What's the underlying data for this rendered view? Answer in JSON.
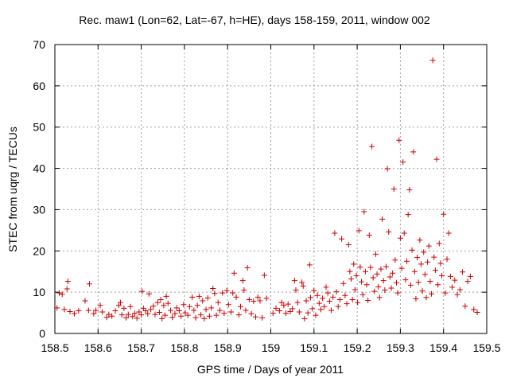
{
  "chart_data": {
    "type": "scatter",
    "title": "Rec. maw1 (Lon=62, Lat=-67, h=HE), days 158-159, 2011, window 002",
    "xlabel": "GPS time / Days of year 2011",
    "ylabel": "STEC from uqrg / TECUs",
    "xlim": [
      158.5,
      159.5
    ],
    "ylim": [
      0,
      70
    ],
    "xticks": [
      "158.5",
      "158.6",
      "158.7",
      "158.8",
      "158.9",
      "159",
      "159.1",
      "159.2",
      "159.3",
      "159.4",
      "159.5"
    ],
    "yticks": [
      "0",
      "10",
      "20",
      "30",
      "40",
      "50",
      "60",
      "70"
    ],
    "grid": true,
    "marker": "+",
    "color": "#cc0000",
    "points": [
      [
        158.505,
        6.2
      ],
      [
        158.51,
        9.8
      ],
      [
        158.517,
        9.5
      ],
      [
        158.522,
        5.8
      ],
      [
        158.528,
        10.8
      ],
      [
        158.53,
        12.6
      ],
      [
        158.535,
        5.3
      ],
      [
        158.545,
        4.8
      ],
      [
        158.555,
        5.5
      ],
      [
        158.57,
        7.9
      ],
      [
        158.578,
        5.6
      ],
      [
        158.58,
        12.0
      ],
      [
        158.59,
        4.8
      ],
      [
        158.595,
        5.6
      ],
      [
        158.605,
        6.8
      ],
      [
        158.61,
        5.2
      ],
      [
        158.62,
        3.9
      ],
      [
        158.625,
        4.6
      ],
      [
        158.632,
        4.2
      ],
      [
        158.64,
        5.5
      ],
      [
        158.648,
        6.8
      ],
      [
        158.652,
        7.5
      ],
      [
        158.655,
        4.5
      ],
      [
        158.66,
        6.1
      ],
      [
        158.665,
        3.8
      ],
      [
        158.67,
        4.6
      ],
      [
        158.675,
        6.5
      ],
      [
        158.68,
        4.1
      ],
      [
        158.685,
        4.9
      ],
      [
        158.69,
        3.7
      ],
      [
        158.695,
        5.2
      ],
      [
        158.7,
        4.5
      ],
      [
        158.702,
        10.2
      ],
      [
        158.705,
        6.1
      ],
      [
        158.71,
        5.5
      ],
      [
        158.715,
        4.8
      ],
      [
        158.718,
        9.6
      ],
      [
        158.722,
        5.8
      ],
      [
        158.728,
        6.6
      ],
      [
        158.732,
        4.6
      ],
      [
        158.738,
        7.5
      ],
      [
        158.742,
        5.1
      ],
      [
        158.745,
        8.2
      ],
      [
        158.748,
        3.6
      ],
      [
        158.752,
        6.8
      ],
      [
        158.755,
        4.4
      ],
      [
        158.758,
        9.0
      ],
      [
        158.762,
        7.3
      ],
      [
        158.768,
        5.6
      ],
      [
        158.772,
        3.9
      ],
      [
        158.778,
        4.8
      ],
      [
        158.782,
        6.2
      ],
      [
        158.788,
        5.5
      ],
      [
        158.792,
        4.2
      ],
      [
        158.798,
        7.0
      ],
      [
        158.802,
        5.0
      ],
      [
        158.808,
        4.4
      ],
      [
        158.812,
        6.5
      ],
      [
        158.818,
        8.8
      ],
      [
        158.822,
        5.6
      ],
      [
        158.826,
        3.8
      ],
      [
        158.83,
        6.8
      ],
      [
        158.834,
        9.0
      ],
      [
        158.838,
        4.5
      ],
      [
        158.842,
        7.9
      ],
      [
        158.846,
        3.6
      ],
      [
        158.85,
        5.8
      ],
      [
        158.854,
        8.6
      ],
      [
        158.858,
        4.2
      ],
      [
        158.862,
        6.2
      ],
      [
        158.866,
        10.9
      ],
      [
        158.87,
        9.7
      ],
      [
        158.874,
        4.4
      ],
      [
        158.878,
        7.5
      ],
      [
        158.882,
        5.6
      ],
      [
        158.888,
        9.8
      ],
      [
        158.892,
        4.9
      ],
      [
        158.898,
        10.4
      ],
      [
        158.902,
        7.0
      ],
      [
        158.908,
        5.2
      ],
      [
        158.912,
        9.8
      ],
      [
        158.915,
        14.6
      ],
      [
        158.92,
        8.8
      ],
      [
        158.926,
        4.5
      ],
      [
        158.93,
        6.5
      ],
      [
        158.935,
        12.8
      ],
      [
        158.938,
        10.5
      ],
      [
        158.942,
        5.6
      ],
      [
        158.946,
        15.9
      ],
      [
        158.95,
        8.2
      ],
      [
        158.955,
        4.8
      ],
      [
        158.96,
        7.8
      ],
      [
        158.965,
        4.0
      ],
      [
        158.97,
        8.8
      ],
      [
        158.975,
        7.9
      ],
      [
        158.98,
        3.8
      ],
      [
        158.985,
        14.1
      ],
      [
        158.99,
        8.5
      ],
      [
        159.005,
        4.9
      ],
      [
        159.012,
        6.1
      ],
      [
        159.02,
        5.5
      ],
      [
        159.025,
        7.5
      ],
      [
        159.03,
        6.8
      ],
      [
        159.035,
        4.9
      ],
      [
        159.04,
        7.1
      ],
      [
        159.045,
        5.3
      ],
      [
        159.05,
        6.0
      ],
      [
        159.055,
        12.8
      ],
      [
        159.058,
        10.5
      ],
      [
        159.062,
        7.5
      ],
      [
        159.066,
        5.2
      ],
      [
        159.072,
        12.4
      ],
      [
        159.075,
        11.5
      ],
      [
        159.078,
        3.6
      ],
      [
        159.082,
        7.9
      ],
      [
        159.086,
        5.0
      ],
      [
        159.09,
        16.6
      ],
      [
        159.092,
        8.7
      ],
      [
        159.096,
        6.0
      ],
      [
        159.1,
        10.4
      ],
      [
        159.104,
        4.4
      ],
      [
        159.108,
        9.2
      ],
      [
        159.112,
        7.3
      ],
      [
        159.116,
        5.8
      ],
      [
        159.12,
        8.5
      ],
      [
        159.124,
        6.5
      ],
      [
        159.128,
        11.2
      ],
      [
        159.132,
        9.8
      ],
      [
        159.136,
        7.8
      ],
      [
        159.14,
        5.6
      ],
      [
        159.144,
        8.8
      ],
      [
        159.148,
        24.3
      ],
      [
        159.152,
        10.1
      ],
      [
        159.156,
        6.5
      ],
      [
        159.16,
        8.2
      ],
      [
        159.164,
        22.9
      ],
      [
        159.168,
        12.1
      ],
      [
        159.172,
        9.2
      ],
      [
        159.176,
        7.2
      ],
      [
        159.18,
        21.5
      ],
      [
        159.183,
        15.0
      ],
      [
        159.186,
        13.2
      ],
      [
        159.189,
        8.2
      ],
      [
        159.192,
        16.8
      ],
      [
        159.195,
        10.6
      ],
      [
        159.198,
        14.0
      ],
      [
        159.201,
        7.5
      ],
      [
        159.204,
        24.9
      ],
      [
        159.207,
        16.1
      ],
      [
        159.21,
        12.5
      ],
      [
        159.213,
        9.4
      ],
      [
        159.216,
        29.5
      ],
      [
        159.219,
        15.0
      ],
      [
        159.222,
        11.8
      ],
      [
        159.225,
        8.0
      ],
      [
        159.228,
        23.8
      ],
      [
        159.231,
        16.0
      ],
      [
        159.234,
        45.3
      ],
      [
        159.237,
        13.5
      ],
      [
        159.24,
        10.2
      ],
      [
        159.243,
        19.2
      ],
      [
        159.246,
        14.4
      ],
      [
        159.249,
        11.3
      ],
      [
        159.252,
        8.7
      ],
      [
        159.255,
        15.6
      ],
      [
        159.258,
        27.7
      ],
      [
        159.261,
        12.8
      ],
      [
        159.264,
        10.5
      ],
      [
        159.267,
        16.2
      ],
      [
        159.27,
        39.9
      ],
      [
        159.273,
        24.6
      ],
      [
        159.276,
        13.7
      ],
      [
        159.279,
        11.0
      ],
      [
        159.282,
        14.6
      ],
      [
        159.285,
        35.0
      ],
      [
        159.288,
        17.8
      ],
      [
        159.291,
        12.3
      ],
      [
        159.294,
        9.8
      ],
      [
        159.297,
        46.8
      ],
      [
        159.3,
        23.1
      ],
      [
        159.303,
        15.8
      ],
      [
        159.306,
        41.5
      ],
      [
        159.309,
        24.3
      ],
      [
        159.312,
        13.0
      ],
      [
        159.315,
        17.5
      ],
      [
        159.318,
        28.8
      ],
      [
        159.321,
        34.8
      ],
      [
        159.324,
        11.7
      ],
      [
        159.327,
        20.2
      ],
      [
        159.33,
        44.0
      ],
      [
        159.333,
        15.0
      ],
      [
        159.336,
        8.4
      ],
      [
        159.339,
        18.4
      ],
      [
        159.342,
        12.4
      ],
      [
        159.345,
        22.6
      ],
      [
        159.348,
        16.8
      ],
      [
        159.351,
        10.3
      ],
      [
        159.354,
        19.7
      ],
      [
        159.357,
        14.3
      ],
      [
        159.36,
        8.7
      ],
      [
        159.363,
        17.3
      ],
      [
        159.366,
        21.2
      ],
      [
        159.369,
        12.6
      ],
      [
        159.372,
        9.6
      ],
      [
        159.375,
        66.2
      ],
      [
        159.378,
        18.5
      ],
      [
        159.381,
        15.3
      ],
      [
        159.384,
        42.2
      ],
      [
        159.387,
        11.8
      ],
      [
        159.39,
        21.8
      ],
      [
        159.393,
        17.0
      ],
      [
        159.396,
        14.0
      ],
      [
        159.4,
        28.9
      ],
      [
        159.404,
        9.8
      ],
      [
        159.408,
        18.0
      ],
      [
        159.412,
        24.3
      ],
      [
        159.416,
        13.8
      ],
      [
        159.42,
        11.2
      ],
      [
        159.426,
        12.9
      ],
      [
        159.432,
        9.4
      ],
      [
        159.438,
        10.6
      ],
      [
        159.444,
        14.9
      ],
      [
        159.45,
        6.6
      ],
      [
        159.456,
        12.6
      ],
      [
        159.462,
        13.8
      ],
      [
        159.47,
        5.8
      ],
      [
        159.478,
        5.1
      ]
    ]
  }
}
